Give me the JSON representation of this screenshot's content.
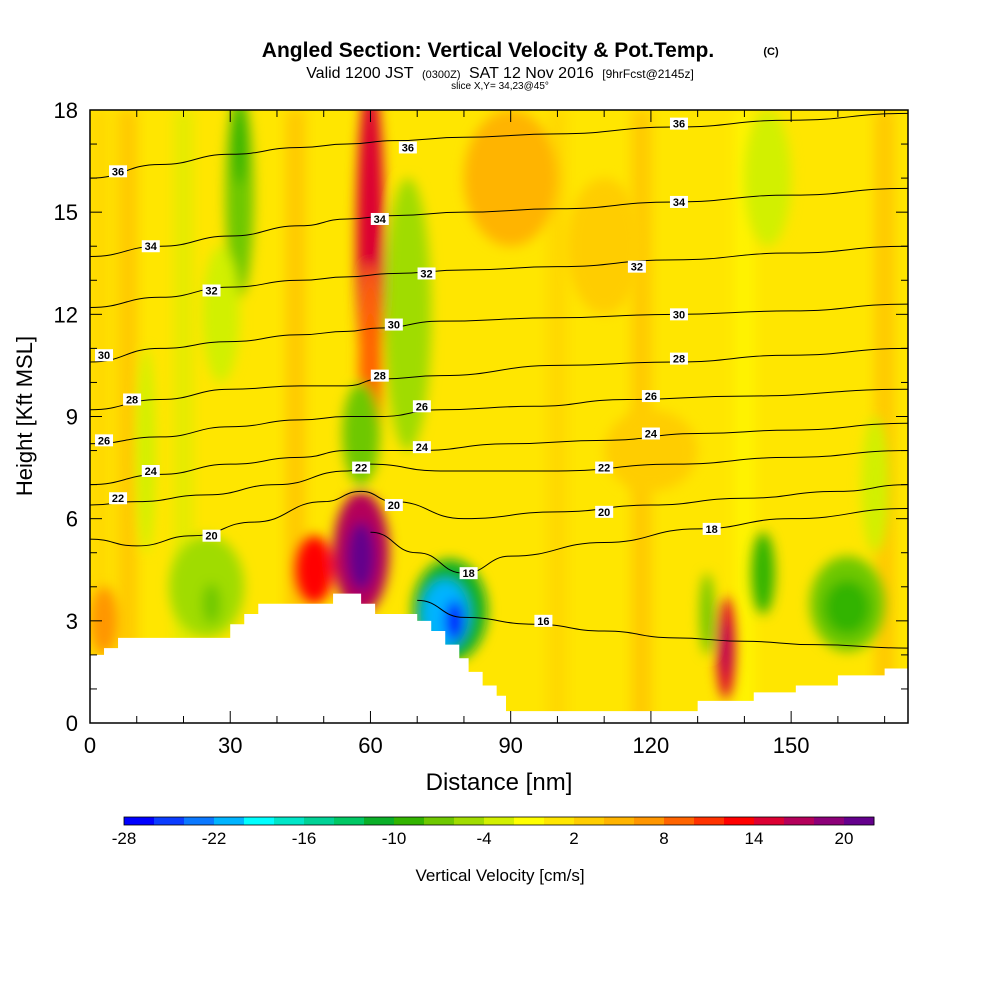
{
  "chart_data": {
    "type": "heatmap",
    "title": "Angled Section: Vertical Velocity & Pot.Temp.",
    "title_mark": "(C)",
    "subtitle": {
      "valid": "Valid 1200 JST",
      "utc": "(0300Z)",
      "date": "SAT 12 Nov 2016",
      "fcst": "[9hrFcst@2145z]"
    },
    "slice_note": "slice X,Y= 34,23@45°",
    "xlabel": "Distance [nm]",
    "ylabel": "Height [Kft MSL]",
    "xlim": [
      0,
      175
    ],
    "ylim": [
      0,
      18
    ],
    "x_ticks": [
      0,
      30,
      60,
      90,
      120,
      150
    ],
    "y_ticks": [
      0,
      3,
      6,
      9,
      12,
      15,
      18
    ],
    "grid": false,
    "colorbar": {
      "label": "Vertical Velocity [cm/s]",
      "tick_labels": [
        "-28",
        "-22",
        "-16",
        "-10",
        "-4",
        "2",
        "8",
        "14",
        "20"
      ],
      "bins": [
        -28,
        -26,
        -24,
        -22,
        -20,
        -18,
        -16,
        -14,
        -12,
        -10,
        -8,
        -6,
        -4,
        -2,
        0,
        2,
        4,
        6,
        8,
        10,
        12,
        14,
        16,
        18,
        20,
        22
      ],
      "colors": [
        "#0000ff",
        "#0a3cff",
        "#0a78ff",
        "#00b4ff",
        "#00ffff",
        "#00e6c8",
        "#00d296",
        "#00c864",
        "#0aaf28",
        "#32b400",
        "#6ec800",
        "#a0dc00",
        "#d2f000",
        "#ffff00",
        "#ffe600",
        "#ffcd00",
        "#ffb400",
        "#ff9600",
        "#ff6400",
        "#ff3200",
        "#ff0000",
        "#dc0032",
        "#b4005a",
        "#8c0078",
        "#64008c"
      ]
    },
    "terrain": [
      [
        0,
        2
      ],
      [
        3,
        2
      ],
      [
        3,
        2.2
      ],
      [
        6,
        2.2
      ],
      [
        6,
        2.5
      ],
      [
        30,
        2.5
      ],
      [
        30,
        2.9
      ],
      [
        33,
        2.9
      ],
      [
        33,
        3.2
      ],
      [
        36,
        3.2
      ],
      [
        36,
        3.5
      ],
      [
        52,
        3.5
      ],
      [
        52,
        3.8
      ],
      [
        58,
        3.8
      ],
      [
        58,
        3.5
      ],
      [
        61,
        3.5
      ],
      [
        61,
        3.2
      ],
      [
        70,
        3.2
      ],
      [
        70,
        3
      ],
      [
        73,
        3
      ],
      [
        73,
        2.7
      ],
      [
        76,
        2.7
      ],
      [
        76,
        2.3
      ],
      [
        79,
        2.3
      ],
      [
        79,
        1.9
      ],
      [
        81,
        1.9
      ],
      [
        81,
        1.5
      ],
      [
        84,
        1.5
      ],
      [
        84,
        1.1
      ],
      [
        87,
        1.1
      ],
      [
        87,
        0.8
      ],
      [
        89,
        0.8
      ],
      [
        89,
        0.35
      ],
      [
        130,
        0.35
      ],
      [
        130,
        0.65
      ],
      [
        142,
        0.65
      ],
      [
        142,
        0.9
      ],
      [
        151,
        0.9
      ],
      [
        151,
        1.1
      ],
      [
        160,
        1.1
      ],
      [
        160,
        1.4
      ],
      [
        170,
        1.4
      ],
      [
        170,
        1.6
      ],
      [
        175,
        1.6
      ]
    ],
    "theta_contours": [
      {
        "level": 16,
        "points": [
          [
            70,
            3.6
          ],
          [
            80,
            3.1
          ],
          [
            95,
            2.9
          ],
          [
            110,
            2.7
          ],
          [
            125,
            2.5
          ],
          [
            140,
            2.4
          ],
          [
            155,
            2.3
          ],
          [
            175,
            2.2
          ]
        ],
        "labels": [
          [
            97,
            3
          ]
        ]
      },
      {
        "level": 18,
        "points": [
          [
            60,
            5.6
          ],
          [
            70,
            5
          ],
          [
            80,
            4.4
          ],
          [
            90,
            4.9
          ],
          [
            110,
            5.3
          ],
          [
            130,
            5.7
          ],
          [
            150,
            6
          ],
          [
            175,
            6.3
          ]
        ],
        "labels": [
          [
            81,
            4.4
          ],
          [
            133,
            5.7
          ]
        ]
      },
      {
        "level": 20,
        "points": [
          [
            0,
            5.4
          ],
          [
            10,
            5.2
          ],
          [
            22,
            5.5
          ],
          [
            35,
            5.9
          ],
          [
            50,
            6.5
          ],
          [
            58,
            6.8
          ],
          [
            65,
            6.5
          ],
          [
            80,
            6
          ],
          [
            100,
            6.2
          ],
          [
            120,
            6.4
          ],
          [
            140,
            6.6
          ],
          [
            160,
            6.8
          ],
          [
            175,
            7
          ]
        ],
        "labels": [
          [
            26,
            5.5
          ],
          [
            65,
            6.4
          ],
          [
            110,
            6.2
          ]
        ]
      },
      {
        "level": 22,
        "points": [
          [
            0,
            6.4
          ],
          [
            10,
            6.5
          ],
          [
            25,
            6.7
          ],
          [
            40,
            7
          ],
          [
            55,
            7.4
          ],
          [
            60,
            7.6
          ],
          [
            75,
            7.4
          ],
          [
            100,
            7.4
          ],
          [
            125,
            7.6
          ],
          [
            150,
            7.8
          ],
          [
            175,
            8
          ]
        ],
        "labels": [
          [
            6,
            6.6
          ],
          [
            58,
            7.5
          ],
          [
            110,
            7.5
          ]
        ]
      },
      {
        "level": 24,
        "points": [
          [
            0,
            7
          ],
          [
            15,
            7.3
          ],
          [
            30,
            7.6
          ],
          [
            45,
            7.8
          ],
          [
            55,
            8
          ],
          [
            60,
            8
          ],
          [
            70,
            8
          ],
          [
            90,
            8.2
          ],
          [
            110,
            8.3
          ],
          [
            130,
            8.5
          ],
          [
            150,
            8.6
          ],
          [
            175,
            8.8
          ]
        ],
        "labels": [
          [
            13,
            7.4
          ],
          [
            71,
            8.1
          ],
          [
            120,
            8.5
          ]
        ]
      },
      {
        "level": 26,
        "points": [
          [
            0,
            8.2
          ],
          [
            15,
            8.4
          ],
          [
            30,
            8.7
          ],
          [
            45,
            8.9
          ],
          [
            55,
            9
          ],
          [
            62,
            9
          ],
          [
            75,
            9.2
          ],
          [
            95,
            9.3
          ],
          [
            115,
            9.5
          ],
          [
            140,
            9.6
          ],
          [
            175,
            9.8
          ]
        ],
        "labels": [
          [
            3,
            8.3
          ],
          [
            71,
            9.3
          ],
          [
            120,
            9.6
          ]
        ]
      },
      {
        "level": 28,
        "points": [
          [
            0,
            9.2
          ],
          [
            15,
            9.5
          ],
          [
            30,
            9.8
          ],
          [
            45,
            9.9
          ],
          [
            55,
            9.9
          ],
          [
            62,
            10.1
          ],
          [
            75,
            10.2
          ],
          [
            100,
            10.5
          ],
          [
            125,
            10.6
          ],
          [
            150,
            10.8
          ],
          [
            175,
            11
          ]
        ],
        "labels": [
          [
            9,
            9.5
          ],
          [
            62,
            10.2
          ],
          [
            126,
            10.7
          ]
        ]
      },
      {
        "level": 30,
        "points": [
          [
            0,
            10.6
          ],
          [
            15,
            11
          ],
          [
            30,
            11.2
          ],
          [
            45,
            11.4
          ],
          [
            55,
            11.5
          ],
          [
            62,
            11.6
          ],
          [
            75,
            11.8
          ],
          [
            100,
            11.9
          ],
          [
            125,
            12
          ],
          [
            150,
            12.1
          ],
          [
            175,
            12.3
          ]
        ],
        "labels": [
          [
            3,
            10.8
          ],
          [
            65,
            11.7
          ],
          [
            126,
            12
          ]
        ]
      },
      {
        "level": 32,
        "points": [
          [
            0,
            12.2
          ],
          [
            15,
            12.5
          ],
          [
            30,
            12.8
          ],
          [
            45,
            13
          ],
          [
            55,
            13.1
          ],
          [
            65,
            13.2
          ],
          [
            80,
            13.3
          ],
          [
            100,
            13.4
          ],
          [
            125,
            13.6
          ],
          [
            150,
            13.8
          ],
          [
            175,
            14
          ]
        ],
        "labels": [
          [
            26,
            12.7
          ],
          [
            72,
            13.2
          ],
          [
            117,
            13.4
          ]
        ]
      },
      {
        "level": 34,
        "points": [
          [
            0,
            13.7
          ],
          [
            15,
            14
          ],
          [
            30,
            14.3
          ],
          [
            45,
            14.6
          ],
          [
            55,
            14.8
          ],
          [
            65,
            14.9
          ],
          [
            80,
            15
          ],
          [
            100,
            15.1
          ],
          [
            125,
            15.3
          ],
          [
            150,
            15.5
          ],
          [
            175,
            15.7
          ]
        ],
        "labels": [
          [
            13,
            14
          ],
          [
            62,
            14.8
          ],
          [
            126,
            15.3
          ]
        ]
      },
      {
        "level": 36,
        "points": [
          [
            0,
            16
          ],
          [
            15,
            16.4
          ],
          [
            30,
            16.7
          ],
          [
            45,
            16.9
          ],
          [
            55,
            17
          ],
          [
            65,
            17.1
          ],
          [
            80,
            17.2
          ],
          [
            100,
            17.3
          ],
          [
            125,
            17.5
          ],
          [
            150,
            17.7
          ],
          [
            175,
            17.9
          ]
        ],
        "labels": [
          [
            6,
            16.2
          ],
          [
            68,
            16.9
          ],
          [
            126,
            17.6
          ]
        ]
      }
    ],
    "velocity_cells": [
      {
        "x": 60,
        "y": 14,
        "rx": 3,
        "ry": 5,
        "value": 14
      },
      {
        "x": 60,
        "y": 10.5,
        "rx": 2.5,
        "ry": 3,
        "value": 8
      },
      {
        "x": 58,
        "y": 5,
        "rx": 6,
        "ry": 1.8,
        "value": 16
      },
      {
        "x": 58,
        "y": 4.9,
        "rx": 3,
        "ry": 1,
        "value": 20
      },
      {
        "x": 48,
        "y": 4.5,
        "rx": 4,
        "ry": 1,
        "value": 12
      },
      {
        "x": 77,
        "y": 3.3,
        "rx": 8,
        "ry": 1.5,
        "value": -12
      },
      {
        "x": 76,
        "y": 3.2,
        "rx": 5,
        "ry": 1,
        "value": -22
      },
      {
        "x": 78,
        "y": 3,
        "rx": 2,
        "ry": 0.6,
        "value": -28
      },
      {
        "x": 136,
        "y": 2.2,
        "rx": 2,
        "ry": 1.5,
        "value": 14
      },
      {
        "x": 136,
        "y": 2.2,
        "rx": 1,
        "ry": 0.8,
        "value": 16
      },
      {
        "x": 132,
        "y": 3.2,
        "rx": 1.5,
        "ry": 1.2,
        "value": -8
      },
      {
        "x": 144,
        "y": 4.4,
        "rx": 2.5,
        "ry": 1.2,
        "value": -10
      },
      {
        "x": 162,
        "y": 3.5,
        "rx": 8,
        "ry": 1.4,
        "value": -8
      },
      {
        "x": 162,
        "y": 3.4,
        "rx": 5,
        "ry": 0.8,
        "value": -10
      },
      {
        "x": 25,
        "y": 4,
        "rx": 8,
        "ry": 1.5,
        "value": -6
      },
      {
        "x": 26,
        "y": 3.5,
        "rx": 2,
        "ry": 0.6,
        "value": -8
      },
      {
        "x": 32,
        "y": 15.5,
        "rx": 3,
        "ry": 3,
        "value": -8
      },
      {
        "x": 32,
        "y": 17,
        "rx": 1.5,
        "ry": 1.2,
        "value": -10
      },
      {
        "x": 28,
        "y": 12,
        "rx": 4,
        "ry": 2,
        "value": -4
      },
      {
        "x": 68,
        "y": 12,
        "rx": 5,
        "ry": 4,
        "value": -6
      },
      {
        "x": 58,
        "y": 8.5,
        "rx": 4,
        "ry": 1.5,
        "value": -8
      },
      {
        "x": 12,
        "y": 8,
        "rx": 2,
        "ry": 3,
        "value": -4
      },
      {
        "x": 145,
        "y": 16,
        "rx": 5,
        "ry": 2,
        "value": -4
      },
      {
        "x": 168,
        "y": 7,
        "rx": 3,
        "ry": 2,
        "value": -4
      },
      {
        "x": 3,
        "y": 3,
        "rx": 3,
        "ry": 1,
        "value": 6
      },
      {
        "x": 90,
        "y": 16,
        "rx": 10,
        "ry": 2,
        "value": 4
      },
      {
        "x": 110,
        "y": 14,
        "rx": 8,
        "ry": 2,
        "value": 2
      },
      {
        "x": 120,
        "y": 8,
        "rx": 10,
        "ry": 1.2,
        "value": 2
      }
    ]
  }
}
